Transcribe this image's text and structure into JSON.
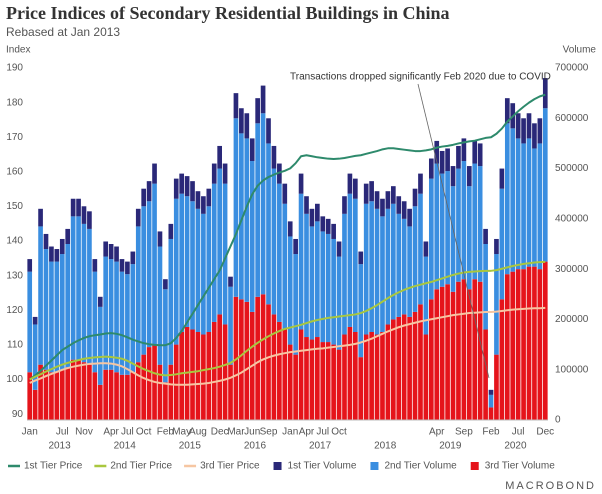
{
  "chart_data": {
    "type": "combo",
    "title": "Price Indices of Secondary Residential Buildings in China",
    "subtitle": "Rebased at Jan 2013",
    "y_axis_label": "Index",
    "y2_axis_label": "Volume",
    "annotation": "Transactions dropped significantly Feb 2020 due to COVID",
    "logo": "MACROBOND",
    "stacked": true,
    "grid": false,
    "legend": "bottom",
    "year_labels": [
      "2013",
      "2014",
      "2015",
      "2016",
      "2017",
      "2018",
      "2019",
      "2020"
    ],
    "categories": [
      "Jan",
      null,
      null,
      null,
      null,
      null,
      "Jul",
      null,
      null,
      null,
      "Nov",
      null,
      null,
      null,
      null,
      "Apr",
      null,
      null,
      "Jul",
      null,
      null,
      "Oct",
      null,
      null,
      null,
      "Feb",
      null,
      null,
      "May",
      null,
      null,
      "Aug",
      null,
      null,
      null,
      "Dec",
      null,
      null,
      "Mar",
      null,
      null,
      "Jun",
      null,
      null,
      "Sep",
      null,
      null,
      null,
      "Jan",
      null,
      null,
      "Apr",
      null,
      null,
      "Jul",
      null,
      null,
      "Oct",
      null,
      null,
      null,
      null,
      null,
      null,
      null,
      null,
      null,
      null,
      null,
      null,
      null,
      null,
      null,
      null,
      null,
      "Apr",
      null,
      null,
      null,
      null,
      "Sep",
      null,
      null,
      null,
      null,
      "Feb",
      null,
      null,
      null,
      null,
      "Jul",
      null,
      null,
      null,
      null,
      "Dec"
    ],
    "ylim": [
      88.3,
      190
    ],
    "yticks": [
      90,
      100,
      110,
      120,
      130,
      140,
      150,
      160,
      170,
      180,
      190
    ],
    "y2lim": [
      0,
      700000
    ],
    "y2ticks": [
      0,
      100000,
      200000,
      300000,
      400000,
      500000,
      600000,
      700000
    ],
    "series": [
      {
        "name": "1st Tier Price",
        "type": "line",
        "color": "#2e8a6c",
        "values": [
          100,
          101.2,
          102.5,
          104,
          105.5,
          107,
          108.5,
          109.5,
          110.5,
          111.3,
          112,
          112.5,
          112.8,
          113,
          113.3,
          113.4,
          113.2,
          112.8,
          112.2,
          111.5,
          111,
          110.5,
          110.2,
          110,
          109.9,
          109.9,
          110.5,
          112,
          114,
          116.5,
          119,
          121.5,
          124,
          126.5,
          129,
          131.5,
          135,
          138.5,
          142,
          146,
          150,
          153.5,
          156,
          157.5,
          158.5,
          159.2,
          159.8,
          160.3,
          161,
          162.5,
          164.5,
          164.8,
          164.5,
          164.2,
          164,
          163.8,
          163.7,
          163.8,
          164,
          164.3,
          164.6,
          164.8,
          165.2,
          165.6,
          166,
          166.5,
          166.8,
          166.8,
          166.6,
          166.4,
          166.2,
          166,
          166,
          166.2,
          166.5,
          167,
          167.3,
          167.5,
          167.8,
          168.2,
          168.5,
          168.8,
          169,
          169.4,
          169.8,
          170,
          171,
          172.5,
          174.5,
          176,
          177.5,
          178.8,
          180,
          181,
          181.8,
          182.3
        ]
      },
      {
        "name": "2nd Tier Price",
        "type": "line",
        "color": "#a9c73e",
        "values": [
          100,
          100.8,
          101.5,
          102.3,
          103,
          103.7,
          104.3,
          104.8,
          105.2,
          105.6,
          106,
          106.2,
          106.4,
          106.5,
          106.6,
          106.5,
          106.3,
          106,
          105.4,
          104.6,
          103.8,
          103,
          102.4,
          101.8,
          101.4,
          101.2,
          101.3,
          101.5,
          101.8,
          102,
          102.2,
          102.4,
          102.7,
          103,
          103.3,
          103.7,
          104.2,
          104.8,
          105.8,
          107,
          108.3,
          109.5,
          110.6,
          111.6,
          112.5,
          113.3,
          114,
          114.6,
          115,
          115.4,
          115.8,
          116.3,
          116.8,
          117.2,
          117.5,
          117.8,
          118,
          118.2,
          118.4,
          118.6,
          118.8,
          119.2,
          119.8,
          120.6,
          121.5,
          122.5,
          123.5,
          124.4,
          125.2,
          125.9,
          126.5,
          127,
          127.4,
          127.8,
          128.2,
          128.7,
          129.2,
          129.7,
          130.2,
          130.6,
          130.9,
          131.1,
          131.2,
          131.3,
          131.4,
          131.4,
          131.6,
          132,
          132.4,
          132.8,
          133.1,
          133.4,
          133.6,
          133.8,
          133.9,
          134
        ]
      },
      {
        "name": "3rd Tier Price",
        "type": "line",
        "color": "#f6c6a2",
        "values": [
          99,
          99.7,
          100.3,
          101,
          101.6,
          102.2,
          102.8,
          103.3,
          103.7,
          104,
          104.3,
          104.5,
          104.6,
          104.7,
          104.7,
          104.6,
          104.3,
          103.8,
          103,
          102.1,
          101.2,
          100.4,
          99.8,
          99.3,
          99,
          98.8,
          98.6,
          98.5,
          98.5,
          98.5,
          98.6,
          98.7,
          98.8,
          99,
          99.3,
          99.6,
          100,
          100.5,
          101.2,
          102,
          103,
          104,
          105,
          105.8,
          106.4,
          106.9,
          107.3,
          107.6,
          107.9,
          108.1,
          108.3,
          108.5,
          108.7,
          108.9,
          109,
          109.2,
          109.4,
          109.6,
          109.8,
          110,
          110.3,
          110.7,
          111.2,
          111.8,
          112.5,
          113.2,
          113.9,
          114.5,
          115.1,
          115.6,
          116,
          116.4,
          116.8,
          117.1,
          117.4,
          117.7,
          118,
          118.3,
          118.6,
          118.8,
          119,
          119.2,
          119.3,
          119.4,
          119.5,
          119.5,
          119.6,
          119.8,
          120,
          120.2,
          120.3,
          120.4,
          120.5,
          120.6,
          120.6,
          120.7
        ]
      },
      {
        "name": "1st Tier Volume",
        "type": "bar",
        "axis": "y2",
        "color": "#2a2878",
        "values": [
          25000,
          15000,
          35000,
          30000,
          30000,
          25000,
          30000,
          30000,
          35000,
          35000,
          35000,
          35000,
          25000,
          20000,
          30000,
          30000,
          30000,
          25000,
          25000,
          25000,
          35000,
          35000,
          40000,
          40000,
          30000,
          20000,
          30000,
          40000,
          40000,
          40000,
          40000,
          35000,
          35000,
          35000,
          40000,
          45000,
          40000,
          20000,
          50000,
          50000,
          50000,
          45000,
          50000,
          55000,
          50000,
          45000,
          40000,
          40000,
          30000,
          30000,
          40000,
          35000,
          35000,
          35000,
          30000,
          30000,
          30000,
          30000,
          35000,
          40000,
          40000,
          25000,
          40000,
          40000,
          35000,
          35000,
          35000,
          35000,
          35000,
          35000,
          35000,
          35000,
          40000,
          30000,
          40000,
          45000,
          45000,
          45000,
          40000,
          45000,
          45000,
          40000,
          45000,
          45000,
          30000,
          10000,
          30000,
          40000,
          50000,
          50000,
          50000,
          50000,
          50000,
          50000,
          50000,
          60000
        ]
      },
      {
        "name": "2nd Tier Volume",
        "type": "bar",
        "axis": "y2",
        "color": "#3a8ee0",
        "values": [
          200000,
          130000,
          275000,
          240000,
          220000,
          220000,
          230000,
          245000,
          285000,
          285000,
          275000,
          270000,
          200000,
          155000,
          225000,
          220000,
          220000,
          205000,
          200000,
          215000,
          270000,
          295000,
          290000,
          320000,
          235000,
          185000,
          250000,
          290000,
          275000,
          260000,
          255000,
          245000,
          240000,
          250000,
          275000,
          290000,
          280000,
          155000,
          355000,
          330000,
          325000,
          300000,
          345000,
          360000,
          320000,
          290000,
          275000,
          250000,
          215000,
          200000,
          270000,
          245000,
          225000,
          230000,
          220000,
          215000,
          210000,
          185000,
          240000,
          265000,
          265000,
          185000,
          260000,
          260000,
          250000,
          230000,
          230000,
          230000,
          205000,
          190000,
          180000,
          210000,
          220000,
          155000,
          240000,
          250000,
          225000,
          225000,
          210000,
          225000,
          235000,
          205000,
          230000,
          230000,
          170000,
          25000,
          200000,
          220000,
          300000,
          285000,
          260000,
          250000,
          255000,
          235000,
          250000,
          305000
        ]
      },
      {
        "name": "3rd Tier Volume",
        "type": "bar",
        "axis": "y2",
        "color": "#e5141b",
        "values": [
          95000,
          60000,
          110000,
          100000,
          95000,
          95000,
          100000,
          105000,
          120000,
          120000,
          115000,
          110000,
          95000,
          70000,
          100000,
          100000,
          95000,
          90000,
          90000,
          95000,
          115000,
          130000,
          145000,
          150000,
          110000,
          75000,
          110000,
          150000,
          175000,
          185000,
          180000,
          175000,
          170000,
          175000,
          195000,
          210000,
          190000,
          110000,
          245000,
          240000,
          235000,
          215000,
          245000,
          250000,
          230000,
          210000,
          195000,
          180000,
          150000,
          130000,
          180000,
          165000,
          160000,
          165000,
          155000,
          155000,
          150000,
          140000,
          170000,
          185000,
          175000,
          125000,
          170000,
          175000,
          170000,
          175000,
          190000,
          200000,
          205000,
          210000,
          205000,
          215000,
          230000,
          170000,
          240000,
          260000,
          265000,
          270000,
          255000,
          275000,
          280000,
          260000,
          280000,
          275000,
          180000,
          25000,
          130000,
          240000,
          290000,
          295000,
          300000,
          300000,
          305000,
          305000,
          300000,
          315000
        ]
      }
    ]
  }
}
